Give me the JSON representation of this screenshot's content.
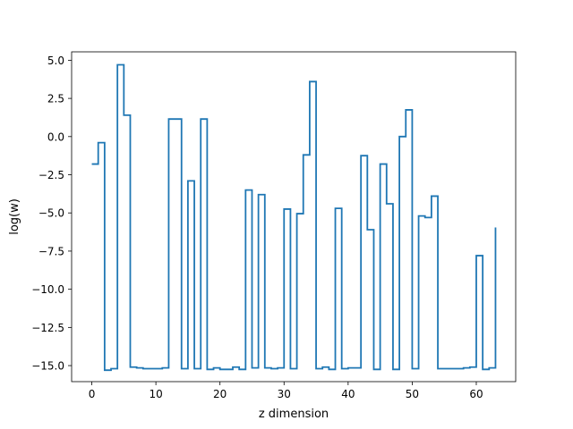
{
  "chart_data": {
    "type": "line",
    "drawstyle": "steps-post",
    "xlabel": "z dimension",
    "ylabel": "log(w)",
    "xlim": [
      -3.15,
      66.15
    ],
    "ylim": [
      -16.05,
      5.55
    ],
    "xticks": [
      0,
      10,
      20,
      30,
      40,
      50,
      60
    ],
    "yticks": [
      5.0,
      2.5,
      0.0,
      -2.5,
      -5.0,
      -7.5,
      -10.0,
      -12.5,
      -15.0
    ],
    "ytick_labels": [
      "5.0",
      "2.5",
      "0.0",
      "−2.5",
      "−5.0",
      "−7.5",
      "−10.0",
      "−12.5",
      "−15.0"
    ],
    "grid": false,
    "color": "#1f77b4",
    "series": [
      {
        "x": [
          0,
          1,
          2,
          3,
          4,
          5,
          6,
          7,
          8,
          9,
          10,
          11,
          12,
          13,
          14,
          15,
          16,
          17,
          18,
          19,
          20,
          21,
          22,
          23,
          24,
          25,
          26,
          27,
          28,
          29,
          30,
          31,
          32,
          33,
          34,
          35,
          36,
          37,
          38,
          39,
          40,
          41,
          42,
          43,
          44,
          45,
          46,
          47,
          48,
          49,
          50,
          51,
          52,
          53,
          54,
          55,
          56,
          57,
          58,
          59,
          60,
          61,
          62,
          63
        ],
        "values": [
          -1.8,
          -0.4,
          -15.3,
          -15.2,
          4.7,
          1.4,
          -15.1,
          -15.15,
          -15.2,
          -15.2,
          -15.2,
          -15.15,
          1.15,
          1.15,
          -15.2,
          -2.9,
          -15.2,
          1.15,
          -15.25,
          -15.15,
          -15.25,
          -15.25,
          -15.1,
          -15.25,
          -3.5,
          -15.15,
          -3.8,
          -15.15,
          -15.2,
          -15.15,
          -4.75,
          -15.2,
          -5.05,
          -1.2,
          3.6,
          -15.2,
          -15.1,
          -15.25,
          -4.7,
          -15.2,
          -15.15,
          -15.15,
          -1.25,
          -6.1,
          -15.25,
          -1.8,
          -4.4,
          -15.25,
          0.0,
          1.75,
          -15.2,
          -5.2,
          -5.3,
          -3.9,
          -15.2,
          -15.2,
          -15.2,
          -15.2,
          -15.15,
          -15.1,
          -7.8,
          -15.25,
          -15.15,
          -5.95
        ]
      }
    ]
  }
}
